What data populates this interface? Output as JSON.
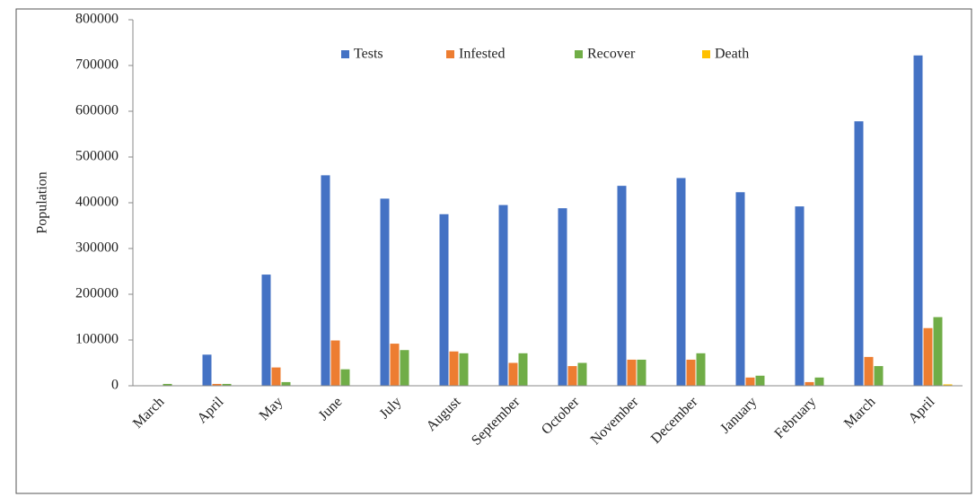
{
  "chart_data": {
    "type": "bar",
    "y_label": "Population",
    "categories": [
      "March",
      "April",
      "May",
      "June",
      "July",
      "August",
      "September",
      "October",
      "November",
      "December",
      "January",
      "February",
      "March",
      "April"
    ],
    "series": [
      {
        "name": "Tests",
        "color": "#4472c4",
        "values": [
          1000,
          68000,
          243000,
          460000,
          409000,
          375000,
          395000,
          388000,
          437000,
          454000,
          423000,
          392000,
          578000,
          722000
        ]
      },
      {
        "name": "Infested",
        "color": "#ed7d31",
        "values": [
          500,
          4000,
          40000,
          99000,
          92000,
          75000,
          50000,
          43000,
          57000,
          57000,
          18000,
          8000,
          63000,
          126000
        ]
      },
      {
        "name": "Recover",
        "color": "#70ad47",
        "values": [
          4000,
          4000,
          8000,
          36000,
          78000,
          71000,
          71000,
          50000,
          57000,
          71000,
          22000,
          18000,
          43000,
          150000
        ]
      },
      {
        "name": "Death",
        "color": "#ffc000",
        "values": [
          0,
          0,
          0,
          0,
          0,
          0,
          0,
          0,
          0,
          0,
          0,
          0,
          0,
          3000
        ]
      }
    ],
    "ylim": [
      0,
      800000
    ],
    "yticks": [
      0,
      100000,
      200000,
      300000,
      400000,
      500000,
      600000,
      700000,
      800000
    ],
    "legend": "top"
  }
}
